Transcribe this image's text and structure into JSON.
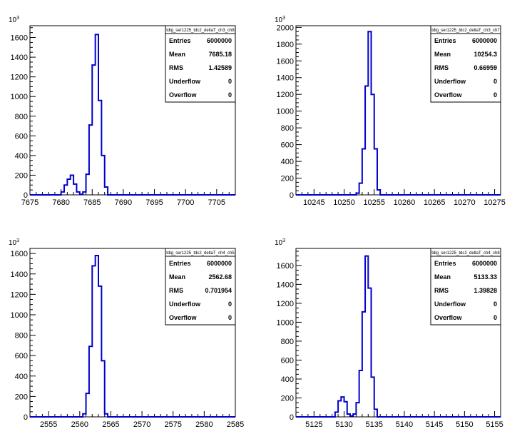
{
  "chart_data": [
    {
      "type": "histogram",
      "title": "tdig_ser1225_tdc2_deltaT_ch3_ch8",
      "y_multiplier": "10",
      "y_multiplier_exp": "3",
      "xlim": [
        7675,
        7708
      ],
      "ylim": [
        0,
        1720
      ],
      "x_ticks": [
        7675,
        7680,
        7685,
        7690,
        7695,
        7700,
        7705
      ],
      "y_ticks": [
        0,
        200,
        400,
        600,
        800,
        1000,
        1200,
        1400,
        1600
      ],
      "bin_width": 0.5,
      "bins": [
        [
          7680.0,
          30
        ],
        [
          7680.5,
          100
        ],
        [
          7681.0,
          160
        ],
        [
          7681.5,
          200
        ],
        [
          7682.0,
          110
        ],
        [
          7682.5,
          30
        ],
        [
          7683.0,
          5
        ],
        [
          7683.5,
          30
        ],
        [
          7684.0,
          210
        ],
        [
          7684.5,
          710
        ],
        [
          7685.0,
          1320
        ],
        [
          7685.5,
          1630
        ],
        [
          7686.0,
          960
        ],
        [
          7686.5,
          400
        ],
        [
          7687.0,
          80
        ]
      ],
      "stats": [
        {
          "label": "Entries",
          "value": "6000000"
        },
        {
          "label": "Mean",
          "value": "7685.18"
        },
        {
          "label": "RMS",
          "value": "1.42589"
        },
        {
          "label": "Underflow",
          "value": "0"
        },
        {
          "label": "Overflow",
          "value": "0"
        }
      ]
    },
    {
      "type": "histogram",
      "title": "tdig_ser1225_tdc2_deltaT_ch3_ch7",
      "y_multiplier": "10",
      "y_multiplier_exp": "3",
      "xlim": [
        10242,
        10276
      ],
      "ylim": [
        0,
        2020
      ],
      "x_ticks": [
        10245,
        10250,
        10255,
        10260,
        10265,
        10270,
        10275
      ],
      "y_ticks": [
        0,
        200,
        400,
        600,
        800,
        1000,
        1200,
        1400,
        1600,
        1800,
        2000
      ],
      "bin_width": 0.5,
      "bins": [
        [
          10252.0,
          20
        ],
        [
          10252.5,
          140
        ],
        [
          10253.0,
          550
        ],
        [
          10253.5,
          1300
        ],
        [
          10254.0,
          1950
        ],
        [
          10254.5,
          1200
        ],
        [
          10255.0,
          550
        ],
        [
          10255.5,
          60
        ]
      ],
      "stats": [
        {
          "label": "Entries",
          "value": "6000000"
        },
        {
          "label": "Mean",
          "value": "10254.3"
        },
        {
          "label": "RMS",
          "value": "0.66959"
        },
        {
          "label": "Underflow",
          "value": "0"
        },
        {
          "label": "Overflow",
          "value": "0"
        }
      ]
    },
    {
      "type": "histogram",
      "title": "tdig_ser1225_tdc2_deltaT_ch4_ch5",
      "y_multiplier": "10",
      "y_multiplier_exp": "3",
      "xlim": [
        2552,
        2585
      ],
      "ylim": [
        0,
        1650
      ],
      "x_ticks": [
        2555,
        2560,
        2565,
        2570,
        2575,
        2580,
        2585
      ],
      "y_ticks": [
        0,
        200,
        400,
        600,
        800,
        1000,
        1200,
        1400,
        1600
      ],
      "bin_width": 0.5,
      "bins": [
        [
          2560.5,
          30
        ],
        [
          2561.0,
          230
        ],
        [
          2561.5,
          690
        ],
        [
          2562.0,
          1480
        ],
        [
          2562.5,
          1580
        ],
        [
          2563.0,
          1280
        ],
        [
          2563.5,
          550
        ],
        [
          2564.0,
          30
        ]
      ],
      "stats": [
        {
          "label": "Entries",
          "value": "6000000"
        },
        {
          "label": "Mean",
          "value": "2562.68"
        },
        {
          "label": "RMS",
          "value": "0.701954"
        },
        {
          "label": "Underflow",
          "value": "0"
        },
        {
          "label": "Overflow",
          "value": "0"
        }
      ]
    },
    {
      "type": "histogram",
      "title": "tdig_ser1225_tdc2_deltaT_ch4_ch8",
      "y_multiplier": "10",
      "y_multiplier_exp": "3",
      "xlim": [
        5122,
        5156
      ],
      "ylim": [
        0,
        1780
      ],
      "x_ticks": [
        5125,
        5130,
        5135,
        5140,
        5145,
        5150,
        5155
      ],
      "y_ticks": [
        0,
        200,
        400,
        600,
        800,
        1000,
        1200,
        1400,
        1600
      ],
      "bin_width": 0.5,
      "bins": [
        [
          5128.5,
          50
        ],
        [
          5129.0,
          170
        ],
        [
          5129.5,
          210
        ],
        [
          5130.0,
          160
        ],
        [
          5130.5,
          30
        ],
        [
          5131.0,
          10
        ],
        [
          5131.5,
          30
        ],
        [
          5132.0,
          150
        ],
        [
          5132.5,
          490
        ],
        [
          5133.0,
          1110
        ],
        [
          5133.5,
          1700
        ],
        [
          5134.0,
          1360
        ],
        [
          5134.5,
          420
        ],
        [
          5135.0,
          80
        ]
      ],
      "stats": [
        {
          "label": "Entries",
          "value": "6000000"
        },
        {
          "label": "Mean",
          "value": "5133.33"
        },
        {
          "label": "RMS",
          "value": "1.39828"
        },
        {
          "label": "Underflow",
          "value": "0"
        },
        {
          "label": "Overflow",
          "value": "0"
        }
      ]
    }
  ]
}
